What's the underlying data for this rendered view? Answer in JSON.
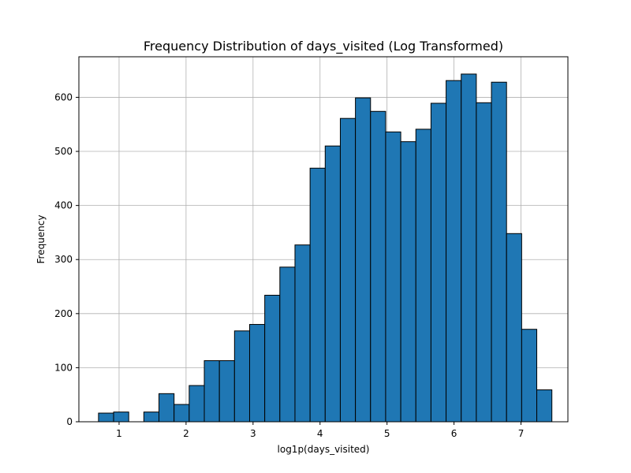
{
  "chart_data": {
    "type": "bar",
    "title": "Frequency Distribution of days_visited (Log Transformed)",
    "xlabel": "log1p(days_visited)",
    "ylabel": "Frequency",
    "xlim": [
      0.4,
      7.7
    ],
    "ylim": [
      0,
      675
    ],
    "grid": true,
    "colors": {
      "bar": "#1f77b4",
      "edge": "#000000",
      "grid": "#b0b0b0"
    },
    "xticks": [
      1,
      2,
      3,
      4,
      5,
      6,
      7
    ],
    "yticks": [
      0,
      100,
      200,
      300,
      400,
      500,
      600
    ],
    "bin_start": 0.693,
    "bin_width": 0.2256,
    "values": [
      16,
      18,
      0,
      18,
      52,
      32,
      67,
      113,
      113,
      168,
      180,
      234,
      286,
      327,
      469,
      510,
      561,
      599,
      574,
      536,
      518,
      541,
      589,
      631,
      643,
      590,
      628,
      348,
      171,
      59
    ]
  }
}
